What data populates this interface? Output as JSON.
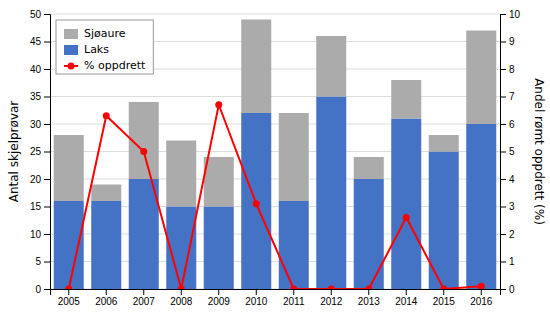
{
  "chart_data": {
    "type": "bar",
    "stacked": true,
    "categories": [
      "2005",
      "2006",
      "2007",
      "2008",
      "2009",
      "2010",
      "2011",
      "2012",
      "2013",
      "2014",
      "2015",
      "2016"
    ],
    "series": [
      {
        "name": "Laks",
        "color": "#4472C4",
        "type": "bar",
        "values": [
          16,
          16,
          20,
          15,
          15,
          32,
          16,
          35,
          20,
          31,
          25,
          30
        ]
      },
      {
        "name": "Sjøaure",
        "color": "#ABABAB",
        "type": "bar",
        "values": [
          12,
          3,
          14,
          12,
          9,
          17,
          16,
          11,
          4,
          7,
          3,
          17
        ]
      },
      {
        "name": "% oppdrett",
        "color": "#FF0000",
        "type": "line",
        "marker": "circle",
        "axis": "y2",
        "values": [
          0.0,
          6.3,
          5.0,
          0.0,
          6.7,
          3.1,
          0.0,
          0.0,
          0.0,
          2.6,
          0.0,
          0.1
        ]
      }
    ],
    "ylabel": "Antal skjelprøvar",
    "y2label": "Andel rømt oppdrett (%)",
    "ylim": [
      0,
      50
    ],
    "yticks": [
      0,
      5,
      10,
      15,
      20,
      25,
      30,
      35,
      40,
      45,
      50
    ],
    "y2lim": [
      0,
      10
    ],
    "y2ticks": [
      0,
      1,
      2,
      3,
      4,
      5,
      6,
      7,
      8,
      9,
      10
    ],
    "grid": true,
    "legend": "upper left"
  }
}
